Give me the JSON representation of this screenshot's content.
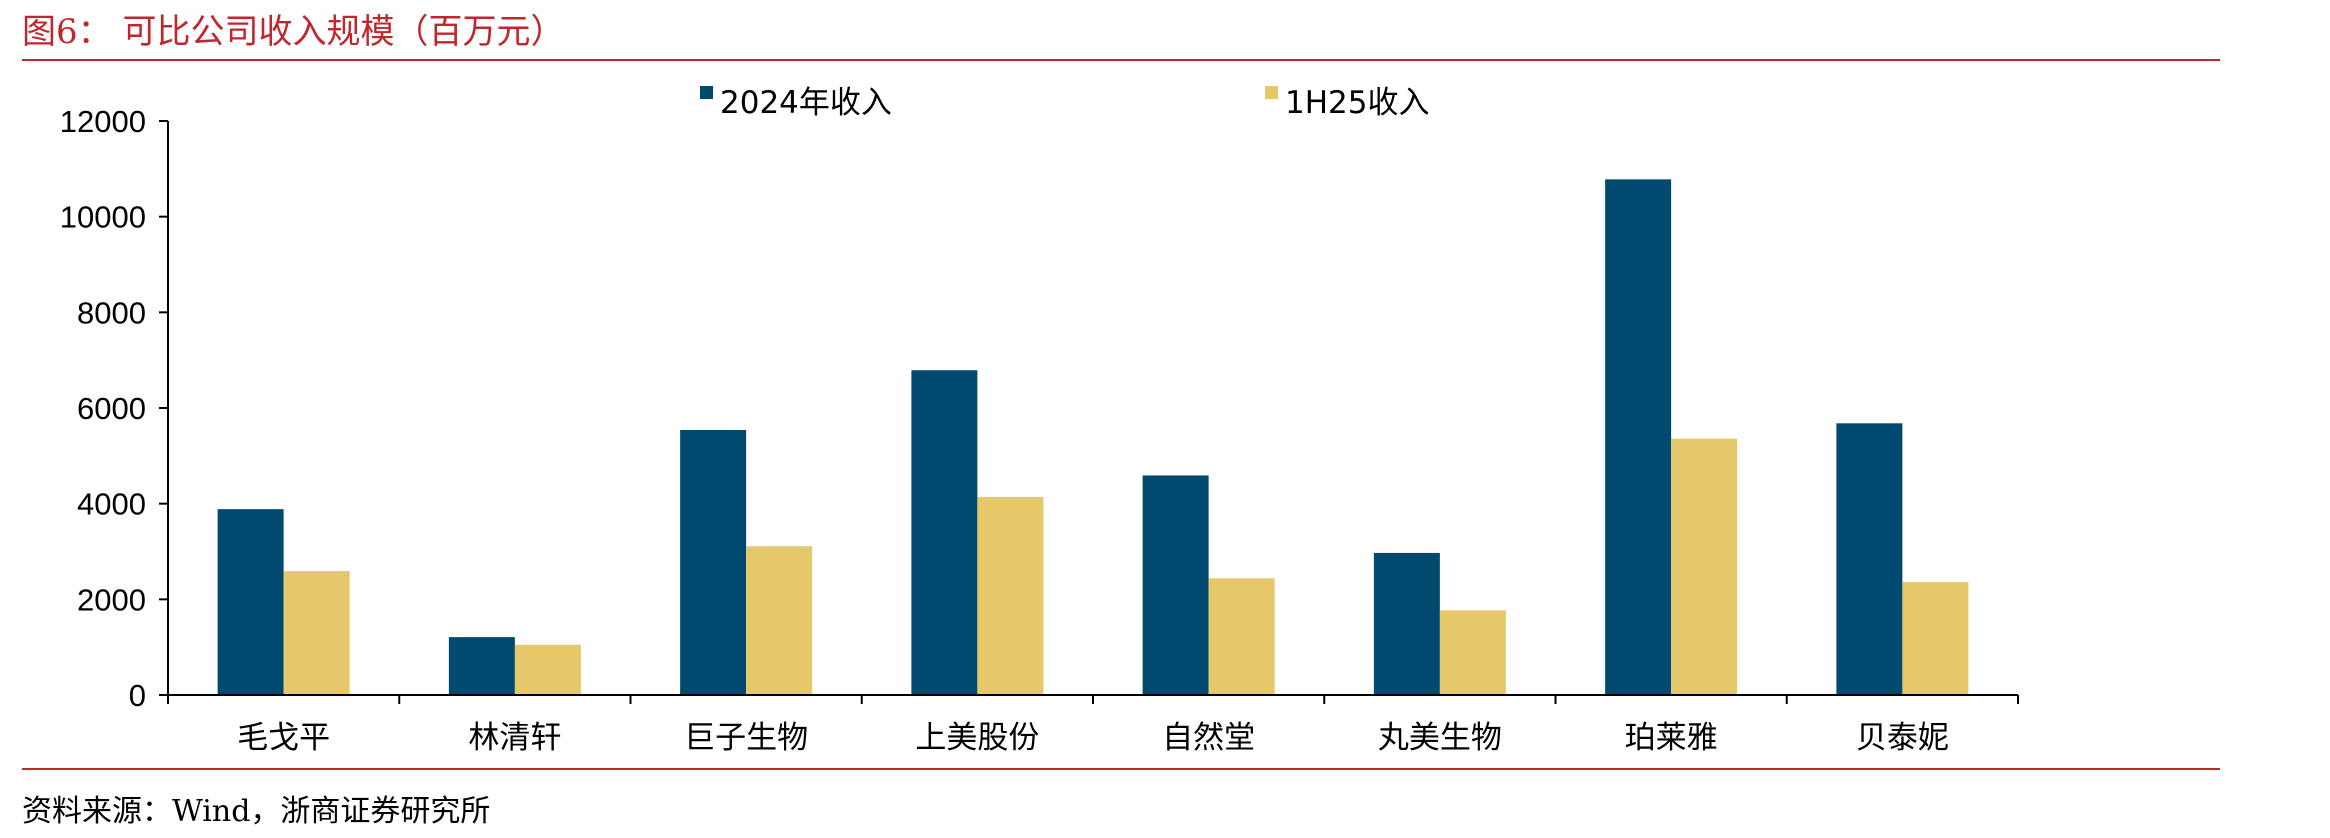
{
  "figure": {
    "title": "图6：  可比公司收入规模（百万元）",
    "source": "资料来源：Wind，浙商证券研究所"
  },
  "chart_data": {
    "type": "bar",
    "categories": [
      "毛戈平",
      "林清轩",
      "巨子生物",
      "上美股份",
      "自然堂",
      "丸美生物",
      "珀莱雅",
      "贝泰妮"
    ],
    "series": [
      {
        "name": "2024年收入",
        "color": "#004a70",
        "values": [
          3885,
          1210,
          5540,
          6790,
          4590,
          2970,
          10780,
          5680
        ]
      },
      {
        "name": "1H25收入",
        "color": "#e5c86a",
        "values": [
          2590,
          1050,
          3110,
          4140,
          2440,
          1770,
          5360,
          2360
        ]
      }
    ],
    "yticks": [
      0,
      2000,
      4000,
      6000,
      8000,
      10000,
      12000
    ],
    "ylim": [
      0,
      12000
    ],
    "legend_position": "top",
    "grid": false
  }
}
